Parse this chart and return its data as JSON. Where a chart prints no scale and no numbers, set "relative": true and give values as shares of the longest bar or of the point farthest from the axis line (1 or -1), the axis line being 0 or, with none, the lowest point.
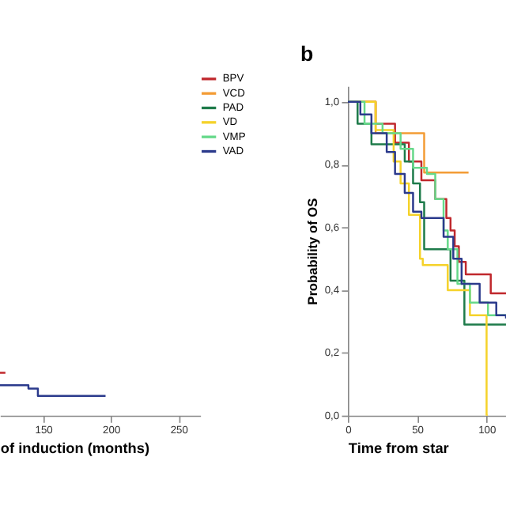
{
  "chart_data": [
    {
      "type": "step",
      "xlabel": "of induction (months)",
      "xlim": [
        118,
        266
      ],
      "xticks": [
        150,
        200,
        250
      ],
      "tick_labels": "x",
      "relative": true,
      "series": [
        {
          "color": "#c0282d",
          "x": [
            118,
            122
          ],
          "values": [
            1,
            1
          ]
        },
        {
          "color": "#2b3a8c",
          "x": [
            118,
            139,
            146,
            196
          ],
          "values": [
            0.71,
            0.63,
            0.46,
            0.46
          ]
        }
      ]
    },
    {
      "type": "step",
      "title": "b",
      "xlabel": "Time from star",
      "ylabel": "Probability of OS",
      "xlim": [
        0,
        114
      ],
      "xticks": [
        0,
        50,
        100
      ],
      "ylim": [
        0,
        1.05
      ],
      "legend": "top left",
      "yticks": [
        {
          "value": 0,
          "label": "0,0"
        },
        {
          "value": 0.2,
          "label": "0,2"
        },
        {
          "value": 0.4,
          "label": "0,4"
        },
        {
          "value": 0.6,
          "label": "0,6"
        },
        {
          "value": 0.8,
          "label": "0,8"
        },
        {
          "value": 1,
          "label": "1,0"
        }
      ],
      "series": [
        {
          "name": "BPV",
          "color": "#c0282d",
          "x": [
            0,
            6,
            20,
            34,
            44,
            53,
            63,
            71,
            74,
            77,
            80,
            85,
            103,
            114
          ],
          "values": [
            1.0,
            1.0,
            0.93,
            0.87,
            0.81,
            0.75,
            0.69,
            0.63,
            0.59,
            0.54,
            0.49,
            0.45,
            0.39,
            0.39
          ]
        },
        {
          "name": "VCD",
          "color": "#f39c35",
          "x": [
            0,
            20,
            55,
            87
          ],
          "values": [
            1.0,
            0.9,
            0.775,
            0.775
          ]
        },
        {
          "name": "PAD",
          "color": "#1e7b4a",
          "x": [
            0,
            7,
            17,
            41,
            47,
            52,
            55,
            74,
            84,
            114
          ],
          "values": [
            1.0,
            0.93,
            0.865,
            0.81,
            0.74,
            0.68,
            0.53,
            0.43,
            0.29,
            0.29
          ]
        },
        {
          "name": "VD",
          "color": "#f5d22a",
          "x": [
            0,
            20,
            33,
            38,
            44,
            52,
            54,
            72,
            88,
            100,
            101
          ],
          "values": [
            1.0,
            0.91,
            0.81,
            0.74,
            0.64,
            0.5,
            0.48,
            0.4,
            0.32,
            0.0,
            0.0
          ]
        },
        {
          "name": "VMP",
          "color": "#66d98a",
          "x": [
            0,
            12,
            25,
            38,
            47,
            57,
            63,
            69,
            72,
            79,
            88,
            101,
            114
          ],
          "values": [
            1.0,
            0.93,
            0.9,
            0.85,
            0.79,
            0.77,
            0.69,
            0.59,
            0.53,
            0.42,
            0.36,
            0.32,
            0.32
          ]
        },
        {
          "name": "VAD",
          "color": "#2b3a8c",
          "x": [
            0,
            9,
            17,
            28,
            34,
            41,
            47,
            53,
            66,
            69,
            76,
            82,
            95,
            107,
            114
          ],
          "values": [
            1.0,
            0.96,
            0.9,
            0.84,
            0.77,
            0.71,
            0.65,
            0.63,
            0.63,
            0.57,
            0.5,
            0.42,
            0.36,
            0.32,
            0.31
          ]
        }
      ]
    }
  ]
}
